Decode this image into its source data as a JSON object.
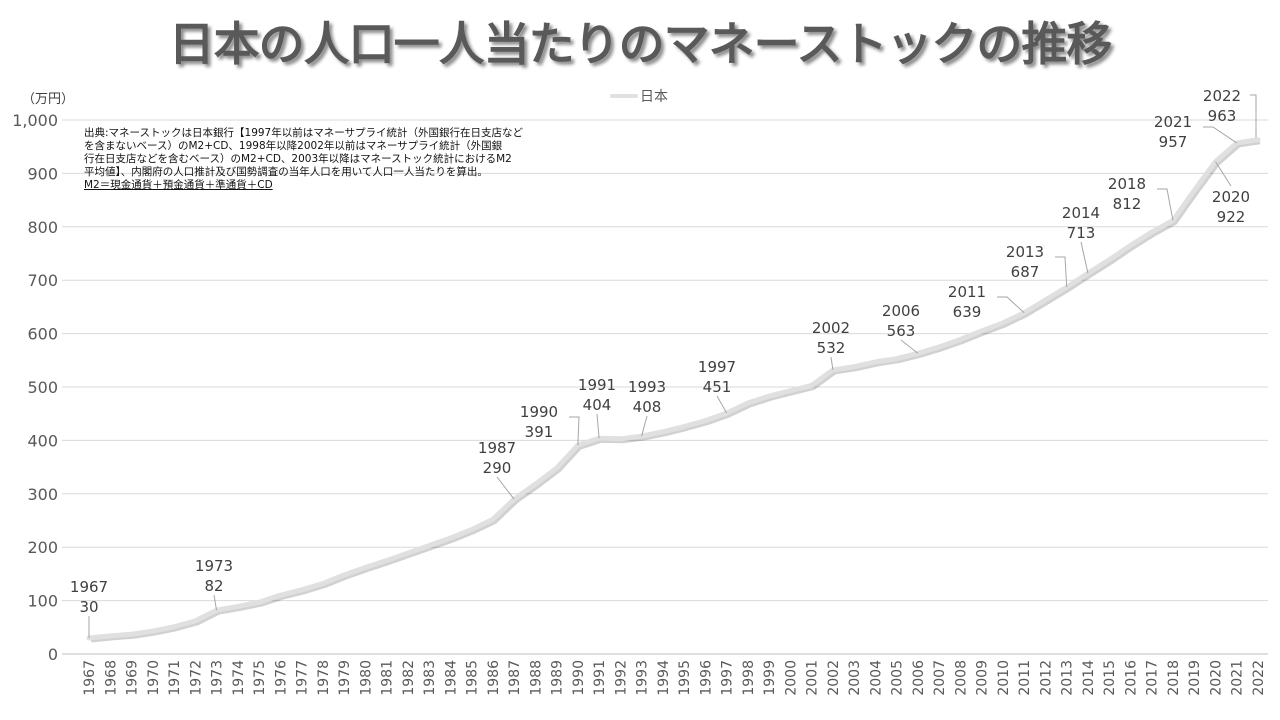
{
  "chart_data": {
    "type": "line",
    "title": "日本の人口一人当たりのマネーストックの推移",
    "ylabel": "（万円）",
    "xlabel": "",
    "ylim": [
      0,
      1000
    ],
    "yticks": [
      0,
      100,
      200,
      300,
      400,
      500,
      600,
      700,
      800,
      900,
      1000
    ],
    "ytick_labels": [
      "0",
      "100",
      "200",
      "300",
      "400",
      "500",
      "600",
      "700",
      "800",
      "900",
      "1,000"
    ],
    "grid": true,
    "legend": "top-center",
    "x": [
      1967,
      1968,
      1969,
      1970,
      1971,
      1972,
      1973,
      1974,
      1975,
      1976,
      1977,
      1978,
      1979,
      1980,
      1981,
      1982,
      1983,
      1984,
      1985,
      1986,
      1987,
      1988,
      1989,
      1990,
      1991,
      1992,
      1993,
      1994,
      1995,
      1996,
      1997,
      1998,
      1999,
      2000,
      2001,
      2002,
      2003,
      2004,
      2005,
      2006,
      2007,
      2008,
      2009,
      2010,
      2011,
      2012,
      2013,
      2014,
      2015,
      2016,
      2017,
      2018,
      2019,
      2020,
      2021,
      2022
    ],
    "series": [
      {
        "name": "日本",
        "color": "#e0e0e0",
        "values": [
          30,
          34,
          37,
          43,
          51,
          62,
          82,
          89,
          97,
          110,
          120,
          132,
          148,
          162,
          175,
          189,
          203,
          217,
          233,
          252,
          290,
          318,
          348,
          391,
          404,
          403,
          408,
          416,
          426,
          437,
          451,
          470,
          483,
          493,
          503,
          532,
          538,
          547,
          553,
          563,
          575,
          589,
          605,
          620,
          639,
          663,
          687,
          713,
          738,
          765,
          790,
          812,
          868,
          922,
          957,
          963
        ]
      }
    ],
    "data_labels": [
      {
        "year": 1967,
        "value": 30
      },
      {
        "year": 1973,
        "value": 82
      },
      {
        "year": 1987,
        "value": 290
      },
      {
        "year": 1990,
        "value": 391
      },
      {
        "year": 1991,
        "value": 404
      },
      {
        "year": 1993,
        "value": 408
      },
      {
        "year": 1997,
        "value": 451
      },
      {
        "year": 2002,
        "value": 532
      },
      {
        "year": 2006,
        "value": 563
      },
      {
        "year": 2011,
        "value": 639
      },
      {
        "year": 2013,
        "value": 687
      },
      {
        "year": 2014,
        "value": 713
      },
      {
        "year": 2018,
        "value": 812
      },
      {
        "year": 2020,
        "value": 922
      },
      {
        "year": 2021,
        "value": 957
      },
      {
        "year": 2022,
        "value": 963
      }
    ],
    "note": {
      "lines": [
        "出典:マネーストックは日本銀行【1997年以前はマネーサプライ統計（外国銀行在日支店など",
        "を含まないベース）のM2+CD、1998年以降2002年以前はマネーサプライ統計（外国銀",
        "行在日支店などを含むベース）のM2+CD、2003年以降はマネーストック統計におけるM2",
        "平均値】、内閣府の人口推計及び国勢調査の当年人口を用いて人口一人当たりを算出。"
      ],
      "definition": "M2＝現金通貨＋預金通貨＋準通貨＋CD"
    }
  }
}
